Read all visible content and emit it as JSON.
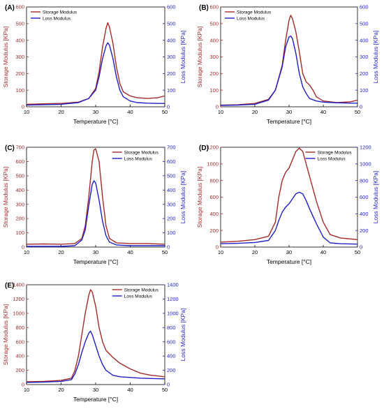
{
  "chart_data": [
    {
      "type": "line",
      "panel_label": "(A)",
      "xlabel": "Temperature [°C]",
      "ylabel_left": "Storage Modulus [KPa]",
      "ylabel_right": "Loss Modulus [KPa]",
      "xlim": [
        10,
        50
      ],
      "x_ticks": [
        "10",
        "20",
        "30",
        "40",
        "50"
      ],
      "ylim": [
        0,
        600
      ],
      "y_ticks": [
        "0",
        "100",
        "200",
        "300",
        "400",
        "500",
        "600"
      ],
      "legend_position": "top-left",
      "series": [
        {
          "name": "Storage Modulus",
          "color": "#a52a2a",
          "points": [
            [
              10,
              15
            ],
            [
              15,
              18
            ],
            [
              20,
              20
            ],
            [
              25,
              28
            ],
            [
              28,
              50
            ],
            [
              30,
              110
            ],
            [
              31,
              210
            ],
            [
              32,
              360
            ],
            [
              33,
              470
            ],
            [
              33.5,
              505
            ],
            [
              34,
              480
            ],
            [
              35,
              380
            ],
            [
              36,
              240
            ],
            [
              37,
              140
            ],
            [
              38,
              90
            ],
            [
              40,
              65
            ],
            [
              42,
              55
            ],
            [
              45,
              50
            ],
            [
              48,
              55
            ],
            [
              50,
              65
            ]
          ]
        },
        {
          "name": "Loss Modulus",
          "color": "#1f1fc8",
          "points": [
            [
              10,
              10
            ],
            [
              15,
              12
            ],
            [
              20,
              15
            ],
            [
              25,
              25
            ],
            [
              28,
              50
            ],
            [
              30,
              100
            ],
            [
              31,
              180
            ],
            [
              32,
              290
            ],
            [
              33,
              365
            ],
            [
              33.5,
              385
            ],
            [
              34,
              370
            ],
            [
              35,
              290
            ],
            [
              36,
              180
            ],
            [
              37,
              100
            ],
            [
              38,
              60
            ],
            [
              40,
              35
            ],
            [
              42,
              25
            ],
            [
              45,
              22
            ],
            [
              48,
              20
            ],
            [
              50,
              20
            ]
          ]
        }
      ]
    },
    {
      "type": "line",
      "panel_label": "(B)",
      "xlabel": "Temperature [°C]",
      "ylabel_left": "Storage Modulus [KPa]",
      "ylabel_right": "Loss Modulus [KPa]",
      "xlim": [
        10,
        50
      ],
      "x_ticks": [
        "10",
        "20",
        "30",
        "40",
        "50"
      ],
      "ylim": [
        0,
        600
      ],
      "y_ticks": [
        "0",
        "100",
        "200",
        "300",
        "400",
        "500",
        "600"
      ],
      "legend_position": "top-left",
      "series": [
        {
          "name": "Storage Modulus",
          "color": "#a52a2a",
          "points": [
            [
              10,
              10
            ],
            [
              15,
              12
            ],
            [
              20,
              20
            ],
            [
              24,
              45
            ],
            [
              26,
              100
            ],
            [
              28,
              250
            ],
            [
              29,
              400
            ],
            [
              30,
              520
            ],
            [
              30.5,
              550
            ],
            [
              31,
              530
            ],
            [
              32,
              450
            ],
            [
              33,
              330
            ],
            [
              34,
              200
            ],
            [
              35,
              150
            ],
            [
              36,
              130
            ],
            [
              37,
              100
            ],
            [
              38,
              60
            ],
            [
              40,
              35
            ],
            [
              44,
              25
            ],
            [
              48,
              30
            ],
            [
              50,
              40
            ]
          ]
        },
        {
          "name": "Loss Modulus",
          "color": "#1f1fc8",
          "points": [
            [
              10,
              8
            ],
            [
              15,
              10
            ],
            [
              20,
              15
            ],
            [
              24,
              40
            ],
            [
              26,
              100
            ],
            [
              28,
              240
            ],
            [
              29,
              360
            ],
            [
              30,
              420
            ],
            [
              30.5,
              425
            ],
            [
              31,
              410
            ],
            [
              32,
              320
            ],
            [
              33,
              200
            ],
            [
              34,
              120
            ],
            [
              35,
              80
            ],
            [
              36,
              50
            ],
            [
              38,
              35
            ],
            [
              40,
              28
            ],
            [
              44,
              24
            ],
            [
              48,
              22
            ],
            [
              50,
              22
            ]
          ]
        }
      ]
    },
    {
      "type": "line",
      "panel_label": "(C)",
      "xlabel": "Temperature [°C]",
      "ylabel_left": "Storage Modulus [KPa]",
      "ylabel_right": "Loss Modulus [KPa]",
      "xlim": [
        10,
        50
      ],
      "x_ticks": [
        "10",
        "20",
        "30",
        "40",
        "50"
      ],
      "ylim": [
        0,
        700
      ],
      "y_ticks": [
        "0",
        "100",
        "200",
        "300",
        "400",
        "500",
        "600",
        "700"
      ],
      "legend_position": "top-right",
      "series": [
        {
          "name": "Storage Modulus",
          "color": "#a52a2a",
          "points": [
            [
              10,
              20
            ],
            [
              15,
              22
            ],
            [
              20,
              20
            ],
            [
              24,
              25
            ],
            [
              26,
              60
            ],
            [
              27,
              150
            ],
            [
              28,
              350
            ],
            [
              29,
              600
            ],
            [
              29.5,
              680
            ],
            [
              30,
              690
            ],
            [
              31,
              600
            ],
            [
              32,
              350
            ],
            [
              33,
              150
            ],
            [
              34,
              60
            ],
            [
              36,
              30
            ],
            [
              40,
              25
            ],
            [
              45,
              25
            ],
            [
              50,
              20
            ]
          ]
        },
        {
          "name": "Loss Modulus",
          "color": "#1f1fc8",
          "points": [
            [
              10,
              5
            ],
            [
              15,
              5
            ],
            [
              20,
              5
            ],
            [
              24,
              10
            ],
            [
              26,
              50
            ],
            [
              27,
              120
            ],
            [
              28,
              290
            ],
            [
              29,
              440
            ],
            [
              29.5,
              465
            ],
            [
              30,
              450
            ],
            [
              31,
              330
            ],
            [
              32,
              180
            ],
            [
              33,
              80
            ],
            [
              34,
              35
            ],
            [
              36,
              15
            ],
            [
              40,
              10
            ],
            [
              45,
              10
            ],
            [
              50,
              10
            ]
          ]
        }
      ]
    },
    {
      "type": "line",
      "panel_label": "(D)",
      "xlabel": "Temperature [°C]",
      "ylabel_left": "Storage Modulus [KPa]",
      "ylabel_right": "Loss Modulus [KPa]",
      "xlim": [
        10,
        50
      ],
      "x_ticks": [
        "10",
        "20",
        "30",
        "40",
        "50"
      ],
      "ylim": [
        0,
        1200
      ],
      "y_ticks": [
        "0",
        "200",
        "400",
        "600",
        "800",
        "1000",
        "1200"
      ],
      "legend_position": "top-right",
      "series": [
        {
          "name": "Storage Modulus",
          "color": "#a52a2a",
          "points": [
            [
              10,
              60
            ],
            [
              15,
              70
            ],
            [
              20,
              90
            ],
            [
              24,
              130
            ],
            [
              26,
              300
            ],
            [
              27,
              600
            ],
            [
              28,
              800
            ],
            [
              29,
              900
            ],
            [
              30,
              950
            ],
            [
              31,
              1050
            ],
            [
              32,
              1150
            ],
            [
              33,
              1190
            ],
            [
              34,
              1150
            ],
            [
              35,
              1000
            ],
            [
              36,
              850
            ],
            [
              37,
              700
            ],
            [
              38,
              550
            ],
            [
              40,
              300
            ],
            [
              42,
              150
            ],
            [
              45,
              110
            ],
            [
              50,
              90
            ]
          ]
        },
        {
          "name": "Loss Modulus",
          "color": "#1f1fc8",
          "points": [
            [
              10,
              40
            ],
            [
              15,
              45
            ],
            [
              20,
              55
            ],
            [
              24,
              80
            ],
            [
              26,
              200
            ],
            [
              27,
              320
            ],
            [
              28,
              420
            ],
            [
              29,
              480
            ],
            [
              30,
              520
            ],
            [
              31,
              580
            ],
            [
              32,
              640
            ],
            [
              33,
              660
            ],
            [
              34,
              640
            ],
            [
              35,
              560
            ],
            [
              36,
              460
            ],
            [
              37,
              370
            ],
            [
              38,
              280
            ],
            [
              40,
              120
            ],
            [
              42,
              50
            ],
            [
              45,
              40
            ],
            [
              50,
              35
            ]
          ]
        }
      ]
    },
    {
      "type": "line",
      "panel_label": "(E)",
      "xlabel": "Temperature [°C]",
      "ylabel_left": "Storage Modulus [KPa]",
      "ylabel_right": "Loss Modulus [KPa]",
      "xlim": [
        10,
        50
      ],
      "x_ticks": [
        "10",
        "20",
        "30",
        "40",
        "50"
      ],
      "ylim": [
        0,
        1400
      ],
      "y_ticks": [
        "0",
        "200",
        "400",
        "600",
        "800",
        "1000",
        "1200",
        "1400"
      ],
      "legend_position": "top-right",
      "series": [
        {
          "name": "Storage Modulus",
          "color": "#a52a2a",
          "points": [
            [
              10,
              40
            ],
            [
              15,
              45
            ],
            [
              20,
              60
            ],
            [
              23,
              90
            ],
            [
              24,
              200
            ],
            [
              25,
              400
            ],
            [
              26,
              700
            ],
            [
              27,
              1000
            ],
            [
              28,
              1250
            ],
            [
              28.5,
              1330
            ],
            [
              29,
              1300
            ],
            [
              30,
              1100
            ],
            [
              31,
              800
            ],
            [
              32,
              600
            ],
            [
              33,
              480
            ],
            [
              35,
              380
            ],
            [
              37,
              300
            ],
            [
              40,
              220
            ],
            [
              43,
              160
            ],
            [
              46,
              130
            ],
            [
              50,
              110
            ]
          ]
        },
        {
          "name": "Loss Modulus",
          "color": "#1f1fc8",
          "points": [
            [
              10,
              30
            ],
            [
              15,
              35
            ],
            [
              20,
              45
            ],
            [
              23,
              70
            ],
            [
              24,
              150
            ],
            [
              25,
              280
            ],
            [
              26,
              450
            ],
            [
              27,
              600
            ],
            [
              28,
              720
            ],
            [
              28.5,
              750
            ],
            [
              29,
              700
            ],
            [
              30,
              550
            ],
            [
              31,
              400
            ],
            [
              32,
              280
            ],
            [
              33,
              200
            ],
            [
              35,
              130
            ],
            [
              37,
              110
            ],
            [
              40,
              100
            ],
            [
              43,
              90
            ],
            [
              46,
              85
            ],
            [
              50,
              80
            ]
          ]
        }
      ]
    }
  ]
}
